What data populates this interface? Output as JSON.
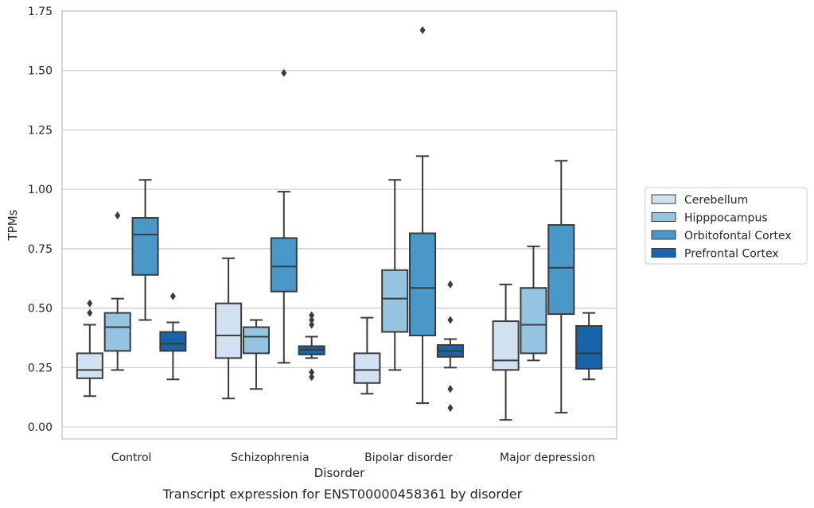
{
  "chart_data": {
    "type": "box",
    "ylabel": "TPMs",
    "xlabel": "Disorder",
    "caption": "Transcript expression for ENST00000458361 by disorder",
    "ylim": [
      -0.05,
      1.75
    ],
    "yticks": [
      "0.00",
      "0.25",
      "0.50",
      "0.75",
      "1.00",
      "1.25",
      "1.50",
      "1.75"
    ],
    "grid": "horizontal",
    "legend_position": "right",
    "categories": [
      "Control",
      "Schizophrenia",
      "Bipolar disorder",
      "Major depression"
    ],
    "series": [
      {
        "name": "Cerebellum",
        "color": "#d0e1f2",
        "boxes": [
          {
            "whislo": 0.13,
            "q1": 0.205,
            "med": 0.24,
            "q3": 0.31,
            "whishi": 0.43,
            "fliers": [
              0.48,
              0.52
            ]
          },
          {
            "whislo": 0.12,
            "q1": 0.29,
            "med": 0.385,
            "q3": 0.52,
            "whishi": 0.71,
            "fliers": []
          },
          {
            "whislo": 0.14,
            "q1": 0.185,
            "med": 0.24,
            "q3": 0.31,
            "whishi": 0.46,
            "fliers": []
          },
          {
            "whislo": 0.03,
            "q1": 0.24,
            "med": 0.28,
            "q3": 0.445,
            "whishi": 0.6,
            "fliers": []
          }
        ]
      },
      {
        "name": "Hipppocampus",
        "color": "#94c4df",
        "boxes": [
          {
            "whislo": 0.24,
            "q1": 0.32,
            "med": 0.42,
            "q3": 0.48,
            "whishi": 0.54,
            "fliers": [
              0.89
            ]
          },
          {
            "whislo": 0.16,
            "q1": 0.31,
            "med": 0.38,
            "q3": 0.42,
            "whishi": 0.45,
            "fliers": []
          },
          {
            "whislo": 0.24,
            "q1": 0.4,
            "med": 0.54,
            "q3": 0.66,
            "whishi": 1.04,
            "fliers": []
          },
          {
            "whislo": 0.28,
            "q1": 0.31,
            "med": 0.43,
            "q3": 0.585,
            "whishi": 0.76,
            "fliers": []
          }
        ]
      },
      {
        "name": "Orbitofontal Cortex",
        "color": "#4a98c9",
        "boxes": [
          {
            "whislo": 0.45,
            "q1": 0.64,
            "med": 0.81,
            "q3": 0.88,
            "whishi": 1.04,
            "fliers": []
          },
          {
            "whislo": 0.27,
            "q1": 0.57,
            "med": 0.675,
            "q3": 0.795,
            "whishi": 0.99,
            "fliers": [
              1.49
            ]
          },
          {
            "whislo": 0.1,
            "q1": 0.385,
            "med": 0.585,
            "q3": 0.815,
            "whishi": 1.14,
            "fliers": [
              1.67
            ]
          },
          {
            "whislo": 0.06,
            "q1": 0.475,
            "med": 0.67,
            "q3": 0.85,
            "whishi": 1.12,
            "fliers": []
          }
        ]
      },
      {
        "name": "Prefrontal Cortex",
        "color": "#1764ab",
        "boxes": [
          {
            "whislo": 0.2,
            "q1": 0.32,
            "med": 0.35,
            "q3": 0.4,
            "whishi": 0.44,
            "fliers": [
              0.55
            ]
          },
          {
            "whislo": 0.29,
            "q1": 0.305,
            "med": 0.325,
            "q3": 0.34,
            "whishi": 0.38,
            "fliers": [
              0.21,
              0.23,
              0.43,
              0.45,
              0.47
            ]
          },
          {
            "whislo": 0.25,
            "q1": 0.295,
            "med": 0.32,
            "q3": 0.345,
            "whishi": 0.37,
            "fliers": [
              0.08,
              0.16,
              0.45,
              0.6
            ]
          },
          {
            "whislo": 0.2,
            "q1": 0.245,
            "med": 0.31,
            "q3": 0.425,
            "whishi": 0.48,
            "fliers": []
          }
        ]
      }
    ]
  }
}
